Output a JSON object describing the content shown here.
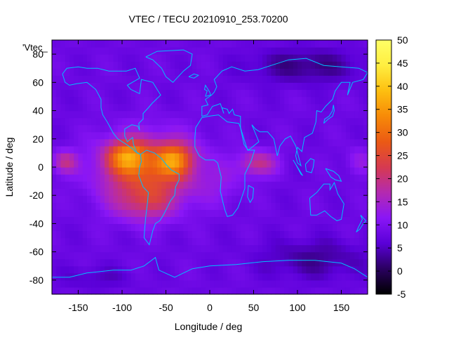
{
  "chart_data": {
    "type": "heatmap",
    "title": "VTEC / TECU 20210910_253.70200",
    "xlabel": "Longitude / deg",
    "ylabel": "Latitude / deg",
    "legend_key": "'Vtec_",
    "xlim": [
      -180,
      180
    ],
    "ylim": [
      -90,
      90
    ],
    "x_ticks": [
      -150,
      -100,
      -50,
      0,
      50,
      100,
      150
    ],
    "y_ticks": [
      -80,
      -60,
      -40,
      -20,
      0,
      20,
      40,
      60,
      80
    ],
    "colorbar": {
      "range": [
        -5,
        50
      ],
      "ticks": [
        -5,
        0,
        5,
        10,
        15,
        20,
        25,
        30,
        35,
        40,
        45,
        50
      ],
      "colormap": [
        "#000000",
        "#2a0060",
        "#5a00d8",
        "#8a16f6",
        "#b42ab0",
        "#d63a50",
        "#eb5a14",
        "#f78a08",
        "#fdbf10",
        "#ffee40",
        "#ffff66"
      ]
    },
    "background_level": 8,
    "features": [
      {
        "name": "Americas equatorial anomaly",
        "lon": -90,
        "lat": 5,
        "peak": 43
      },
      {
        "name": "Atlantic equatorial crest",
        "lon": -40,
        "lat": 5,
        "peak": 42
      },
      {
        "name": "South American southern crest",
        "lon": -70,
        "lat": -25,
        "peak": 30
      },
      {
        "name": "Africa equatorial",
        "lon": 55,
        "lat": 3,
        "peak": 24
      },
      {
        "name": "Arctic low",
        "lon": 110,
        "lat": 72,
        "peak": 2
      },
      {
        "name": "Southern Indian low",
        "lon": 120,
        "lat": -65,
        "peak": 3
      }
    ],
    "coastline_color": "#00bfff"
  }
}
